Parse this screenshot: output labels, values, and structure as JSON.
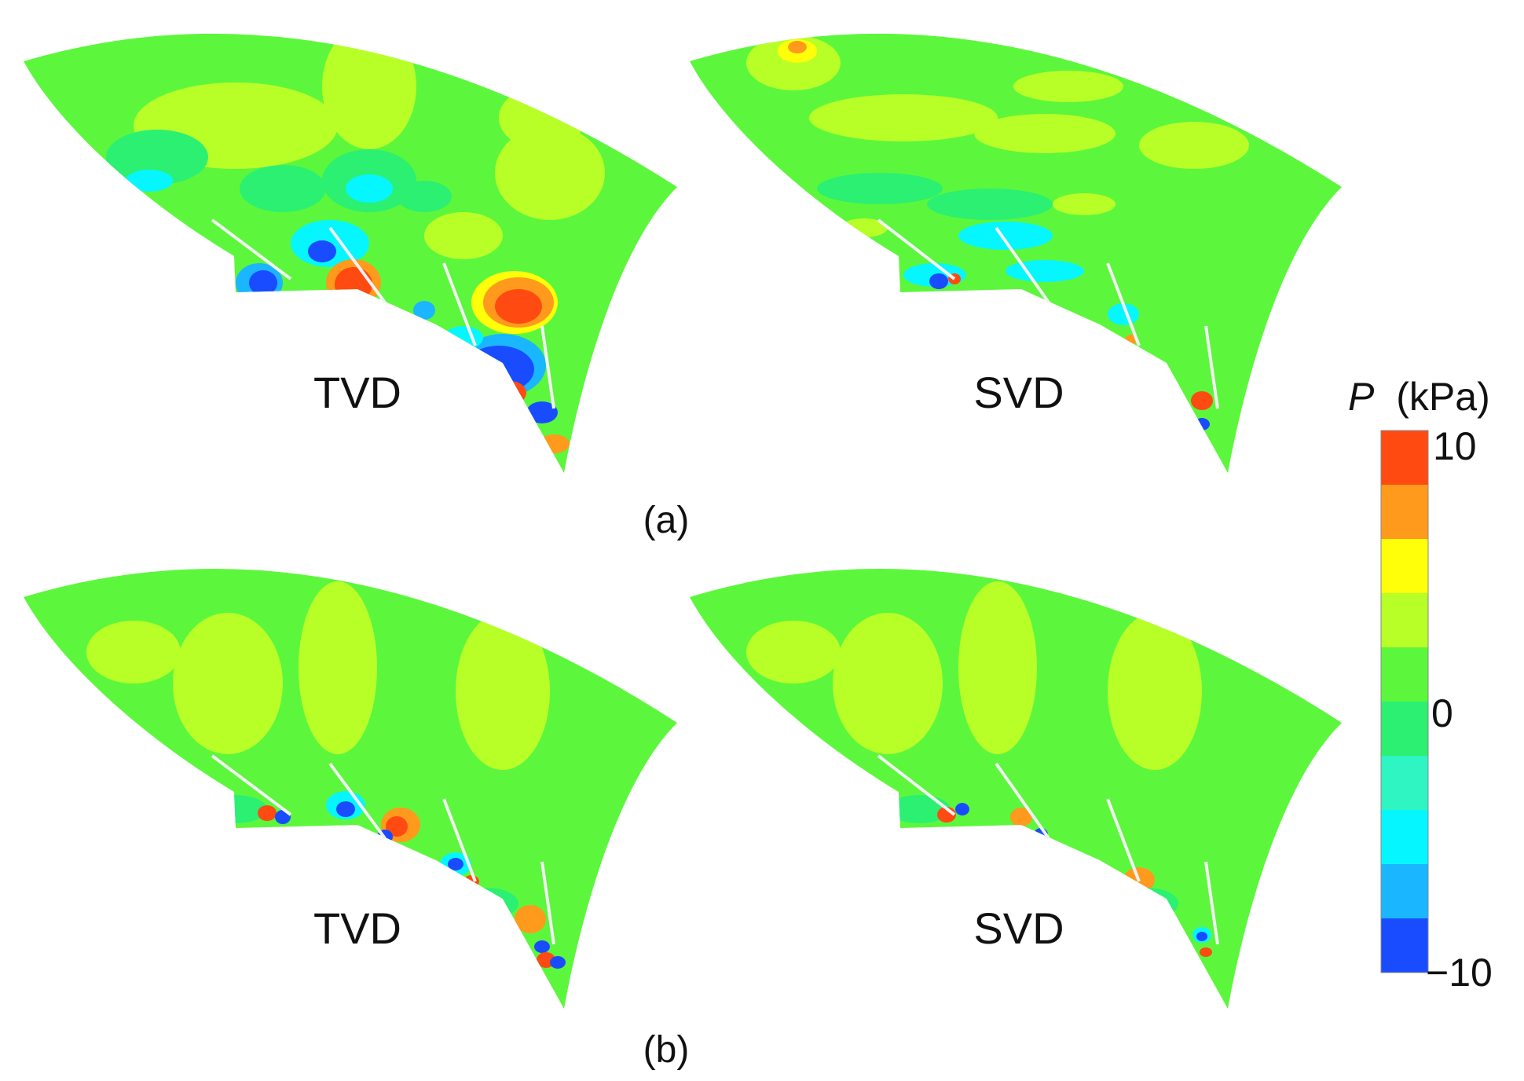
{
  "colorbar": {
    "symbol": "P",
    "unit": "(kPa)",
    "max_label": "10",
    "mid_label": "0",
    "min_label": "−10",
    "levels": [
      "#ff4a12",
      "#ff9a1c",
      "#ffff0a",
      "#b8ff28",
      "#5cf73c",
      "#2bf072",
      "#2ef5c2",
      "#06f6ff",
      "#1ab6ff",
      "#1a4cff"
    ]
  },
  "rows": [
    {
      "caption": "(a)",
      "panels": [
        {
          "label": "TVD"
        },
        {
          "label": "SVD"
        }
      ]
    },
    {
      "caption": "(b)",
      "panels": [
        {
          "label": "TVD"
        },
        {
          "label": "SVD"
        }
      ]
    }
  ],
  "colors": {
    "field_base": "#5cf73c",
    "blade": "#f2f2f2"
  }
}
